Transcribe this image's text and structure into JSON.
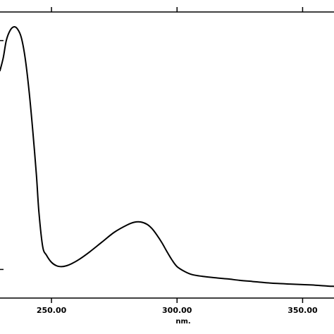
{
  "chart_data": {
    "type": "line",
    "title": "",
    "xlabel": "nm.",
    "ylabel": "",
    "xlim": [
      229.5,
      362.5
    ],
    "ylim": [
      0,
      1
    ],
    "grid": false,
    "x_ticks": [
      {
        "value": 250,
        "label": "250.00"
      },
      {
        "value": 300,
        "label": "300.00"
      },
      {
        "value": 350,
        "label": "350.00"
      }
    ],
    "y_ticks": [
      0.1,
      0.9
    ],
    "series": [
      {
        "name": "",
        "points": [
          [
            229.5,
            0.795
          ],
          [
            230.8,
            0.84
          ],
          [
            232.0,
            0.9
          ],
          [
            233.5,
            0.935
          ],
          [
            235.0,
            0.948
          ],
          [
            236.5,
            0.94
          ],
          [
            238.0,
            0.91
          ],
          [
            239.5,
            0.84
          ],
          [
            241.0,
            0.73
          ],
          [
            242.5,
            0.59
          ],
          [
            244.0,
            0.43
          ],
          [
            245.0,
            0.3
          ],
          [
            246.5,
            0.18
          ],
          [
            248.0,
            0.15
          ],
          [
            250.0,
            0.125
          ],
          [
            252.0,
            0.113
          ],
          [
            254.0,
            0.11
          ],
          [
            256.0,
            0.113
          ],
          [
            258.0,
            0.12
          ],
          [
            261.0,
            0.135
          ],
          [
            265.0,
            0.16
          ],
          [
            270.0,
            0.195
          ],
          [
            275.0,
            0.23
          ],
          [
            280.0,
            0.255
          ],
          [
            283.0,
            0.265
          ],
          [
            285.5,
            0.266
          ],
          [
            288.0,
            0.258
          ],
          [
            290.0,
            0.243
          ],
          [
            292.0,
            0.22
          ],
          [
            294.0,
            0.193
          ],
          [
            296.0,
            0.162
          ],
          [
            298.0,
            0.133
          ],
          [
            300.0,
            0.11
          ],
          [
            303.0,
            0.093
          ],
          [
            306.0,
            0.082
          ],
          [
            310.0,
            0.076
          ],
          [
            315.0,
            0.071
          ],
          [
            320.0,
            0.067
          ],
          [
            325.0,
            0.062
          ],
          [
            330.0,
            0.058
          ],
          [
            335.0,
            0.054
          ],
          [
            340.0,
            0.051
          ],
          [
            345.0,
            0.049
          ],
          [
            350.0,
            0.047
          ],
          [
            355.0,
            0.045
          ],
          [
            360.0,
            0.042
          ],
          [
            362.5,
            0.041
          ]
        ]
      }
    ]
  }
}
